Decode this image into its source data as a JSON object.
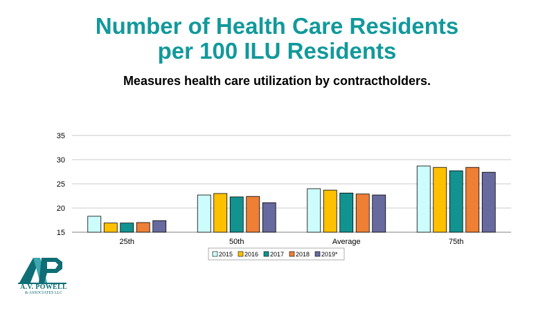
{
  "title_line1": "Number of Health Care Residents",
  "title_line2": "per 100 ILU Residents",
  "subtitle": "Measures health care utilization by contractholders.",
  "logo": {
    "name": "A.V. POWELL",
    "sub": "& ASSOCIATES LLC"
  },
  "chart_data": {
    "type": "bar",
    "title": "",
    "xlabel": "",
    "ylabel": "",
    "categories": [
      "25th",
      "50th",
      "Average",
      "75th"
    ],
    "ylim": [
      15,
      35
    ],
    "yticks": [
      "15",
      "20",
      "25",
      "30",
      "35"
    ],
    "grid": true,
    "legend_position": "bottom",
    "series": [
      {
        "name": "2015",
        "color": "#ccfcfb",
        "values": [
          18.3,
          22.7,
          24.0,
          28.7
        ]
      },
      {
        "name": "2016",
        "color": "#ffc000",
        "values": [
          16.9,
          23.0,
          23.7,
          28.4
        ]
      },
      {
        "name": "2017",
        "color": "#12938f",
        "values": [
          16.9,
          22.3,
          23.1,
          27.7
        ]
      },
      {
        "name": "2018",
        "color": "#ee7f35",
        "values": [
          17.0,
          22.4,
          22.9,
          28.4
        ]
      },
      {
        "name": "2019*",
        "color": "#676a9e",
        "values": [
          17.4,
          21.1,
          22.7,
          27.4
        ]
      }
    ]
  }
}
